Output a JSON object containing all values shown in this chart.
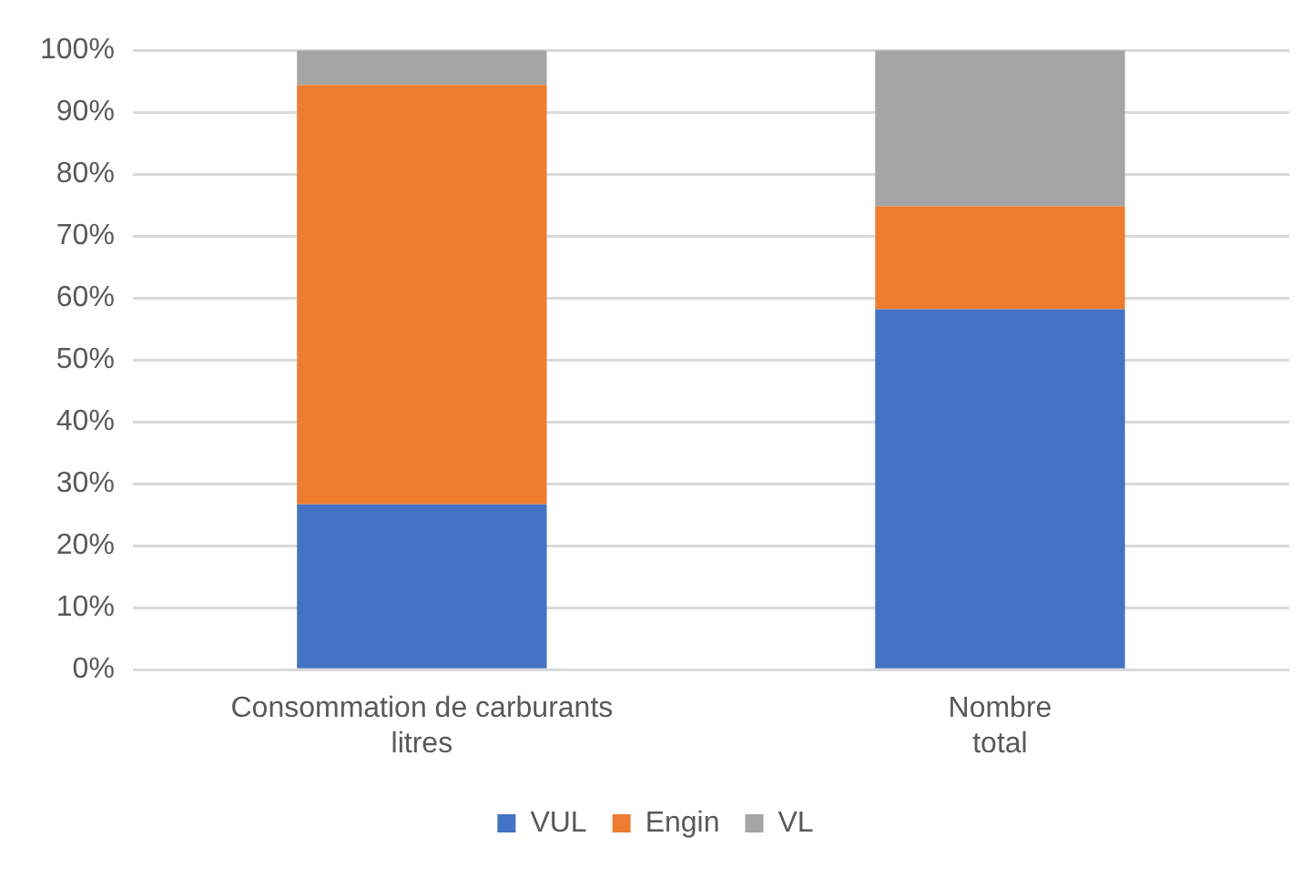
{
  "chart_data": {
    "type": "bar",
    "stacked": true,
    "categories": [
      "Consommation de carburants\nlitres",
      "Nombre\ntotal"
    ],
    "series": [
      {
        "name": "VUL",
        "color": "#4472c4",
        "values": [
          26.7,
          58.2
        ]
      },
      {
        "name": "Engin",
        "color": "#ed7d31",
        "values": [
          67.7,
          16.6
        ]
      },
      {
        "name": "VL",
        "color": "#a5a5a5",
        "values": [
          5.6,
          25.2
        ]
      }
    ],
    "ylim": [
      0,
      100
    ],
    "yticks": [
      {
        "value": 0,
        "label": "0%"
      },
      {
        "value": 10,
        "label": "10%"
      },
      {
        "value": 20,
        "label": "20%"
      },
      {
        "value": 30,
        "label": "30%"
      },
      {
        "value": 40,
        "label": "40%"
      },
      {
        "value": 50,
        "label": "50%"
      },
      {
        "value": 60,
        "label": "60%"
      },
      {
        "value": 70,
        "label": "70%"
      },
      {
        "value": 80,
        "label": "80%"
      },
      {
        "value": 90,
        "label": "90%"
      },
      {
        "value": 100,
        "label": "100%"
      }
    ],
    "grid": "y",
    "legend": "bottom"
  }
}
